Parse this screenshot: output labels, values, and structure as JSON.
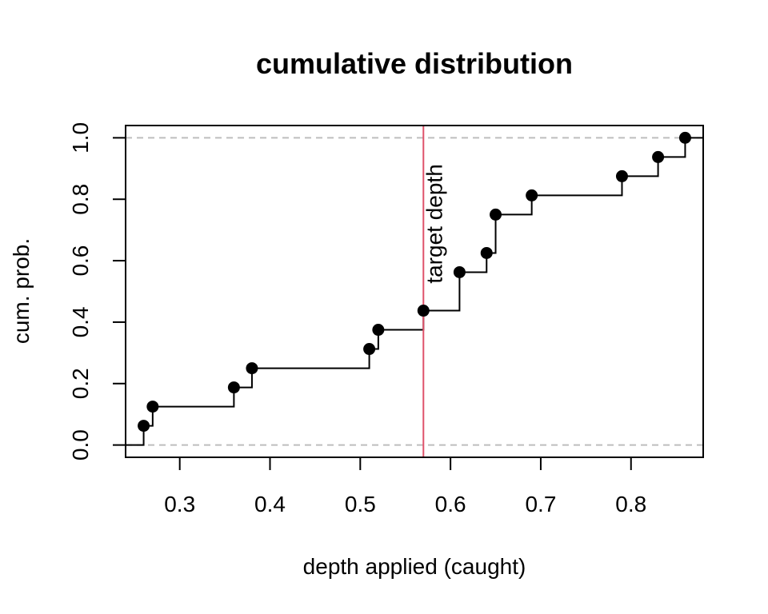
{
  "chart_data": {
    "type": "line",
    "title": "cumulative distribution",
    "xlabel": "depth applied (caught)",
    "ylabel": "cum. prob.",
    "xlim": [
      0.24,
      0.88
    ],
    "ylim": [
      -0.04,
      1.04
    ],
    "x_ticks": [
      0.3,
      0.4,
      0.5,
      0.6,
      0.7,
      0.8
    ],
    "x_tick_labels": [
      "0.3",
      "0.4",
      "0.5",
      "0.6",
      "0.7",
      "0.8"
    ],
    "y_ticks": [
      0.0,
      0.2,
      0.4,
      0.6,
      0.8,
      1.0
    ],
    "y_tick_labels": [
      "0.0",
      "0.2",
      "0.4",
      "0.6",
      "0.8",
      "1.0"
    ],
    "grid": false,
    "step_style": "ecdf",
    "points": [
      {
        "x": 0.26,
        "y": 0.0625
      },
      {
        "x": 0.27,
        "y": 0.125
      },
      {
        "x": 0.36,
        "y": 0.1875
      },
      {
        "x": 0.38,
        "y": 0.25
      },
      {
        "x": 0.51,
        "y": 0.3125
      },
      {
        "x": 0.52,
        "y": 0.375
      },
      {
        "x": 0.57,
        "y": 0.4375
      },
      {
        "x": 0.61,
        "y": 0.5625
      },
      {
        "x": 0.64,
        "y": 0.625
      },
      {
        "x": 0.65,
        "y": 0.75
      },
      {
        "x": 0.69,
        "y": 0.8125
      },
      {
        "x": 0.79,
        "y": 0.875
      },
      {
        "x": 0.83,
        "y": 0.9375
      },
      {
        "x": 0.86,
        "y": 1.0
      }
    ],
    "reference_lines": [
      {
        "orientation": "horizontal",
        "value": 0.0,
        "style": "dashed",
        "color": "#bebebe"
      },
      {
        "orientation": "horizontal",
        "value": 1.0,
        "style": "dashed",
        "color": "#bebebe"
      }
    ],
    "annotations": [
      {
        "type": "vline",
        "x": 0.57,
        "color": "#df536b",
        "label": "target depth",
        "label_y": 0.5
      }
    ],
    "colors": {
      "line": "#000000",
      "points": "#000000"
    }
  }
}
